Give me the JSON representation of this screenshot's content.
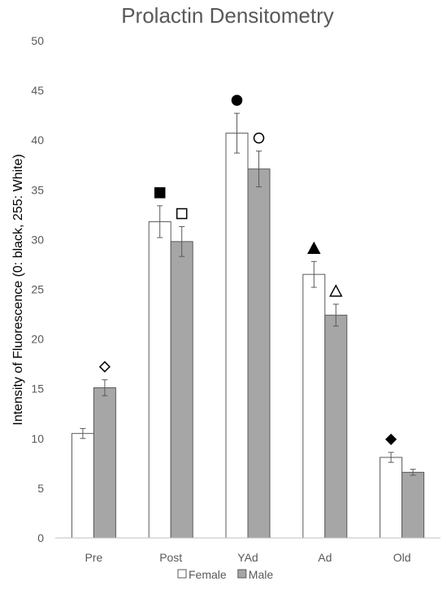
{
  "chart_data": {
    "type": "bar",
    "title": "Prolactin Densitometry",
    "xlabel": "",
    "ylabel": "Intensity of Fluorescence (0: black, 255: White)",
    "ylim": [
      0,
      50
    ],
    "yticks": [
      0,
      5,
      10,
      15,
      20,
      25,
      30,
      35,
      40,
      45,
      50
    ],
    "categories": [
      "Pre",
      "Post",
      "YAd",
      "Ad",
      "Old"
    ],
    "series": [
      {
        "name": "Female",
        "color": "#ffffff",
        "values": [
          10.5,
          31.8,
          40.7,
          26.5,
          8.1
        ],
        "errors": [
          0.5,
          1.6,
          2.0,
          1.3,
          0.5
        ],
        "markers": [
          "",
          "filled-square",
          "filled-circle",
          "filled-triangle",
          "filled-diamond"
        ]
      },
      {
        "name": "Male",
        "color": "#a6a6a6",
        "values": [
          15.1,
          29.8,
          37.1,
          22.4,
          6.6
        ],
        "errors": [
          0.8,
          1.5,
          1.8,
          1.1,
          0.3
        ],
        "markers": [
          "open-diamond",
          "open-square",
          "open-circle",
          "open-triangle",
          ""
        ]
      }
    ],
    "grid": false,
    "legend_position": "bottom"
  }
}
